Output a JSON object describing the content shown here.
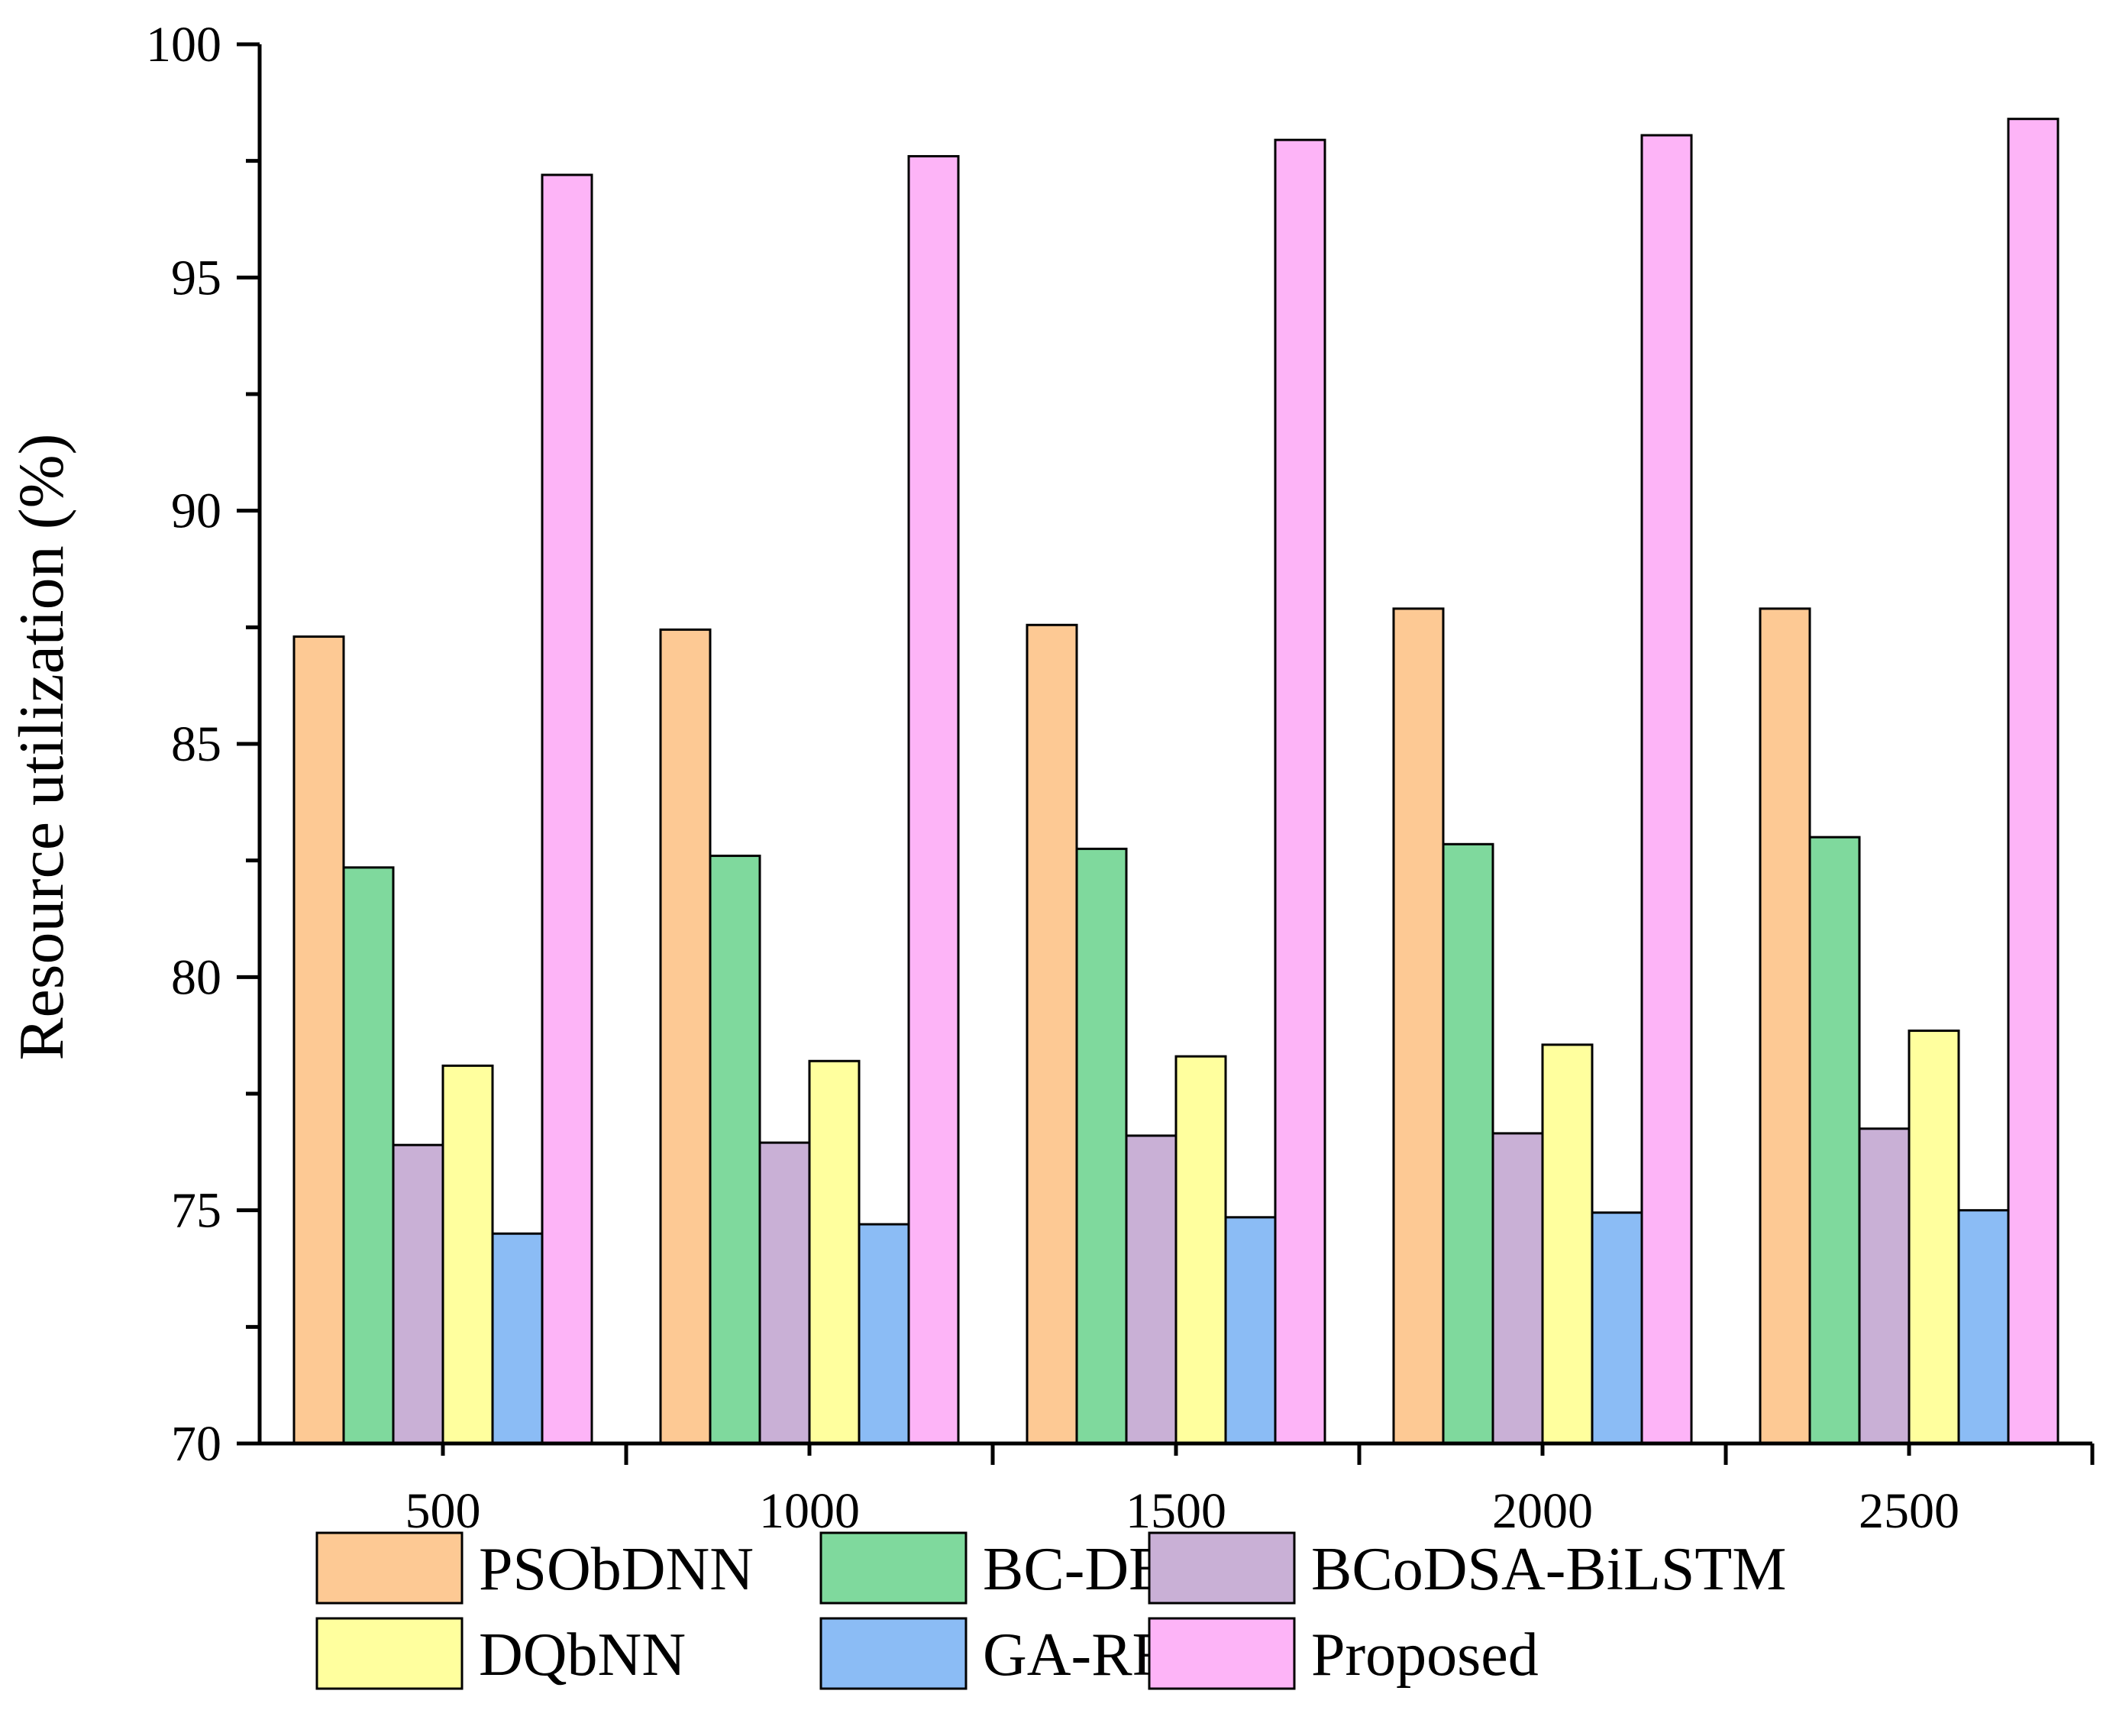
{
  "chart_data": {
    "type": "bar",
    "title": "",
    "xlabel": "",
    "ylabel": "Resource utilization (%)",
    "ylim": [
      70,
      100
    ],
    "yticks": [
      70,
      75,
      80,
      85,
      90,
      95,
      100
    ],
    "categories": [
      "500",
      "1000",
      "1500",
      "2000",
      "2500"
    ],
    "legend_position": "bottom",
    "series": [
      {
        "name": "PSObDNN",
        "color": "#fdc994",
        "values": [
          87.3,
          87.45,
          87.55,
          87.9,
          87.9
        ]
      },
      {
        "name": "BC-DBN",
        "color": "#7fd99d",
        "values": [
          82.35,
          82.6,
          82.75,
          82.85,
          83.0
        ]
      },
      {
        "name": "BCoDSA-BiLSTM",
        "color": "#c9b0d6",
        "values": [
          76.4,
          76.45,
          76.6,
          76.65,
          76.75
        ]
      },
      {
        "name": "DQbNN",
        "color": "#ffff9e",
        "values": [
          78.1,
          78.2,
          78.3,
          78.55,
          78.85
        ]
      },
      {
        "name": "GA-RF",
        "color": "#8bbcf5",
        "values": [
          74.5,
          74.7,
          74.85,
          74.95,
          75.0
        ]
      },
      {
        "name": "Proposed",
        "color": "#fdb4f7",
        "values": [
          97.2,
          97.6,
          97.95,
          98.05,
          98.4
        ]
      }
    ]
  }
}
